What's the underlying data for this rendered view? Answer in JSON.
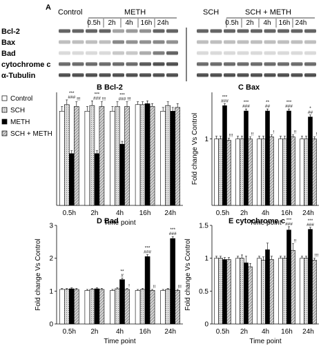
{
  "figure_letter": "A",
  "blot": {
    "headers_left": {
      "control": "Control",
      "meth": "METH"
    },
    "headers_right": {
      "sch": "SCH",
      "sch_meth": "SCH + METH"
    },
    "time_labels": [
      "0.5h",
      "2h",
      "4h",
      "16h",
      "24h"
    ],
    "proteins": [
      "Bcl-2",
      "Bax",
      "Bad",
      "cytochrome c",
      "α-Tubulin"
    ]
  },
  "legend": {
    "items": [
      {
        "label": "Control",
        "color": "#ffffff",
        "pattern": "none"
      },
      {
        "label": "SCH",
        "color": "#d4d4d4",
        "pattern": "dots"
      },
      {
        "label": "METH",
        "color": "#000000",
        "pattern": "none"
      },
      {
        "label": "SCH + METH",
        "color": "#c8c8c8",
        "pattern": "hatch"
      }
    ]
  },
  "chart_data": [
    {
      "type": "bar",
      "panel": "B",
      "title": "Bcl-2",
      "categories": [
        "0.5h",
        "2h",
        "4h",
        "16h",
        "24h"
      ],
      "ylabel": "",
      "xlabel": "Time point",
      "ylim": [
        0,
        1.2
      ],
      "yticks": [],
      "series": [
        {
          "name": "Control",
          "values": [
            1.0,
            1.0,
            1.0,
            1.07,
            1.0
          ],
          "errors": [
            0.05,
            0.05,
            0.05,
            0.03,
            0.04
          ]
        },
        {
          "name": "SCH",
          "values": [
            1.07,
            1.06,
            1.05,
            1.07,
            1.06
          ],
          "errors": [
            0.05,
            0.05,
            0.05,
            0.03,
            0.04
          ]
        },
        {
          "name": "METH",
          "values": [
            0.55,
            0.55,
            0.65,
            1.08,
            1.0
          ],
          "errors": [
            0.03,
            0.03,
            0.03,
            0.03,
            0.04
          ]
        },
        {
          "name": "SCH + METH",
          "values": [
            1.05,
            1.05,
            1.05,
            1.05,
            1.04
          ],
          "errors": [
            0.05,
            0.05,
            0.05,
            0.03,
            0.04
          ]
        }
      ],
      "annotations": [
        {
          "category": "0.5h",
          "labels": [
            "***",
            "###",
            "!!!"
          ]
        },
        {
          "category": "2h",
          "labels": [
            "***",
            "###",
            "!!!"
          ]
        },
        {
          "category": "4h",
          "labels": [
            "***",
            "###",
            "!!!"
          ]
        }
      ]
    },
    {
      "type": "bar",
      "panel": "C",
      "title": "Bax",
      "categories": [
        "0.5h",
        "2h",
        "4h",
        "16h",
        "24h"
      ],
      "ylabel": "Fold change Vs Control",
      "xlabel": "Time point",
      "ylim": [
        0,
        1.7
      ],
      "yticks": [
        1
      ],
      "series": [
        {
          "name": "Control",
          "values": [
            1.0,
            1.0,
            1.0,
            1.0,
            1.0
          ],
          "errors": [
            0.04,
            0.04,
            0.04,
            0.04,
            0.04
          ]
        },
        {
          "name": "SCH",
          "values": [
            1.0,
            1.0,
            1.0,
            1.0,
            1.0
          ],
          "errors": [
            0.04,
            0.04,
            0.04,
            0.04,
            0.04
          ]
        },
        {
          "name": "METH",
          "values": [
            1.5,
            1.42,
            1.42,
            1.42,
            1.33
          ],
          "errors": [
            0.03,
            0.03,
            0.03,
            0.03,
            0.03
          ]
        },
        {
          "name": "SCH + METH",
          "values": [
            0.98,
            1.0,
            1.03,
            1.03,
            1.0
          ],
          "errors": [
            0.03,
            0.03,
            0.03,
            0.03,
            0.03
          ]
        }
      ],
      "annotations": [
        {
          "category": "0.5h",
          "labels": [
            "***",
            "###",
            "!!!"
          ]
        },
        {
          "category": "2h",
          "labels": [
            "***",
            "###",
            "!!"
          ]
        },
        {
          "category": "4h",
          "labels": [
            "**",
            "##",
            "!"
          ]
        },
        {
          "category": "16h",
          "labels": [
            "***",
            "###",
            "!!"
          ]
        },
        {
          "category": "24h",
          "labels": [
            "*",
            "##",
            "!"
          ]
        }
      ]
    },
    {
      "type": "bar",
      "panel": "D",
      "title": "Bad",
      "categories": [
        "0.5h",
        "2h",
        "4h",
        "16h",
        "24h"
      ],
      "ylabel": "Fold change Vs Control",
      "xlabel": "Time point",
      "ylim": [
        0,
        3
      ],
      "yticks": [
        0,
        1,
        2,
        3
      ],
      "series": [
        {
          "name": "Control",
          "values": [
            1.05,
            1.02,
            1.02,
            1.02,
            1.02
          ],
          "errors": [
            0.03,
            0.03,
            0.03,
            0.03,
            0.03
          ]
        },
        {
          "name": "SCH",
          "values": [
            1.05,
            1.05,
            1.07,
            1.05,
            1.05
          ],
          "errors": [
            0.03,
            0.03,
            0.03,
            0.03,
            0.03
          ]
        },
        {
          "name": "METH",
          "values": [
            1.07,
            1.07,
            1.35,
            2.05,
            2.6
          ],
          "errors": [
            0.03,
            0.03,
            0.05,
            0.06,
            0.06
          ]
        },
        {
          "name": "SCH + METH",
          "values": [
            1.05,
            1.05,
            1.05,
            1.02,
            1.02
          ],
          "errors": [
            0.03,
            0.03,
            0.03,
            0.03,
            0.03
          ]
        }
      ],
      "annotations": [
        {
          "category": "4h",
          "labels": [
            "**",
            "#",
            "!"
          ]
        },
        {
          "category": "16h",
          "labels": [
            "***",
            "###",
            "!!"
          ]
        },
        {
          "category": "24h",
          "labels": [
            "***",
            "###",
            "!!!"
          ]
        }
      ]
    },
    {
      "type": "bar",
      "panel": "E",
      "title": "cytochrome c",
      "categories": [
        "0.5h",
        "2h",
        "4h",
        "16h",
        "24h"
      ],
      "ylabel": "Fold change Vs Control",
      "xlabel": "Time point",
      "ylim": [
        0,
        1.5
      ],
      "yticks": [
        0,
        0.5,
        1,
        1.5
      ],
      "series": [
        {
          "name": "Control",
          "values": [
            1.0,
            1.0,
            1.0,
            1.0,
            1.0
          ],
          "errors": [
            0.03,
            0.03,
            0.03,
            0.03,
            0.03
          ]
        },
        {
          "name": "SCH",
          "values": [
            1.0,
            1.0,
            0.97,
            1.0,
            1.0
          ],
          "errors": [
            0.03,
            0.05,
            0.05,
            0.03,
            0.03
          ]
        },
        {
          "name": "METH",
          "values": [
            0.98,
            0.93,
            1.13,
            1.43,
            1.44
          ],
          "errors": [
            0.03,
            0.1,
            0.1,
            0.05,
            0.03
          ]
        },
        {
          "name": "SCH + METH",
          "values": [
            0.98,
            0.87,
            0.98,
            1.12,
            0.97
          ],
          "errors": [
            0.03,
            0.05,
            0.05,
            0.1,
            0.03
          ]
        }
      ],
      "annotations": [
        {
          "category": "16h",
          "labels": [
            "***",
            "###",
            "!!"
          ]
        },
        {
          "category": "24h",
          "labels": [
            "***",
            "###",
            "!!!"
          ]
        }
      ]
    }
  ]
}
